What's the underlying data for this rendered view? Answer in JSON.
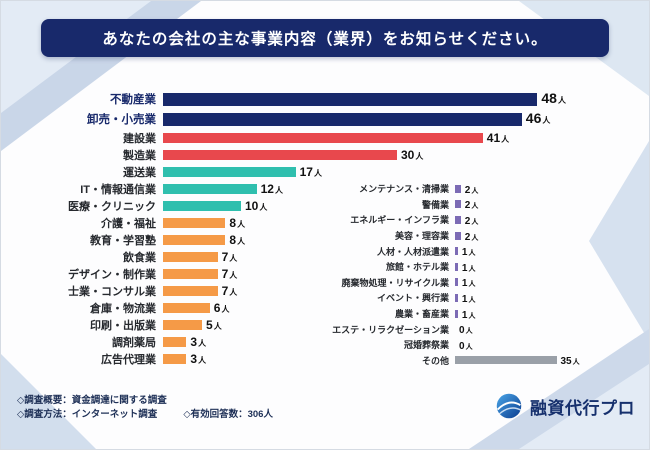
{
  "title": "あなたの会社の主な事業内容（業界）をお知らせください。",
  "chart_data": {
    "type": "bar",
    "orientation": "horizontal",
    "title": "あなたの会社の主な事業内容（業界）をお知らせください。",
    "unit": "人",
    "total_responses": 306,
    "colors": {
      "navy": "#18296b",
      "red": "#e8484d",
      "teal": "#2fbfae",
      "orange": "#f59a47",
      "purple": "#7c6bb5",
      "gray": "#9aa0a8"
    },
    "left_series": [
      {
        "label": "不動産業",
        "value": 48,
        "color": "#18296b",
        "emphasis": true
      },
      {
        "label": "卸売・小売業",
        "value": 46,
        "color": "#18296b",
        "emphasis": true
      },
      {
        "label": "建設業",
        "value": 41,
        "color": "#e8484d"
      },
      {
        "label": "製造業",
        "value": 30,
        "color": "#e8484d"
      },
      {
        "label": "運送業",
        "value": 17,
        "color": "#2fbfae"
      },
      {
        "label": "IT・情報通信業",
        "value": 12,
        "color": "#2fbfae"
      },
      {
        "label": "医療・クリニック",
        "value": 10,
        "color": "#2fbfae"
      },
      {
        "label": "介護・福祉",
        "value": 8,
        "color": "#f59a47"
      },
      {
        "label": "教育・学習塾",
        "value": 8,
        "color": "#f59a47"
      },
      {
        "label": "飲食業",
        "value": 7,
        "color": "#f59a47"
      },
      {
        "label": "デザイン・制作業",
        "value": 7,
        "color": "#f59a47"
      },
      {
        "label": "士業・コンサル業",
        "value": 7,
        "color": "#f59a47"
      },
      {
        "label": "倉庫・物流業",
        "value": 6,
        "color": "#f59a47"
      },
      {
        "label": "印刷・出版業",
        "value": 5,
        "color": "#f59a47"
      },
      {
        "label": "調剤薬局",
        "value": 3,
        "color": "#f59a47"
      },
      {
        "label": "広告代理業",
        "value": 3,
        "color": "#f59a47"
      }
    ],
    "right_series": [
      {
        "label": "メンテナンス・清掃業",
        "value": 2,
        "color": "#7c6bb5"
      },
      {
        "label": "警備業",
        "value": 2,
        "color": "#7c6bb5"
      },
      {
        "label": "エネルギー・インフラ業",
        "value": 2,
        "color": "#7c6bb5"
      },
      {
        "label": "美容・理容業",
        "value": 2,
        "color": "#7c6bb5"
      },
      {
        "label": "人材・人材派遣業",
        "value": 1,
        "color": "#7c6bb5"
      },
      {
        "label": "旅館・ホテル業",
        "value": 1,
        "color": "#7c6bb5"
      },
      {
        "label": "廃棄物処理・リサイクル業",
        "value": 1,
        "color": "#7c6bb5"
      },
      {
        "label": "イベント・興行業",
        "value": 1,
        "color": "#7c6bb5"
      },
      {
        "label": "農業・畜産業",
        "value": 1,
        "color": "#7c6bb5"
      },
      {
        "label": "エステ・リラクゼーション業",
        "value": 0,
        "color": "#7c6bb5"
      },
      {
        "label": "冠婚葬祭業",
        "value": 0,
        "color": "#7c6bb5"
      },
      {
        "label": "その他",
        "value": 35,
        "color": "#9aa0a8"
      }
    ]
  },
  "footer": {
    "note1": "◇調査概要：資金調達に関する調査",
    "note2": "◇調査方法：インターネット調査",
    "note3": "◇有効回答数：306人",
    "brand": "融資代行プロ"
  }
}
